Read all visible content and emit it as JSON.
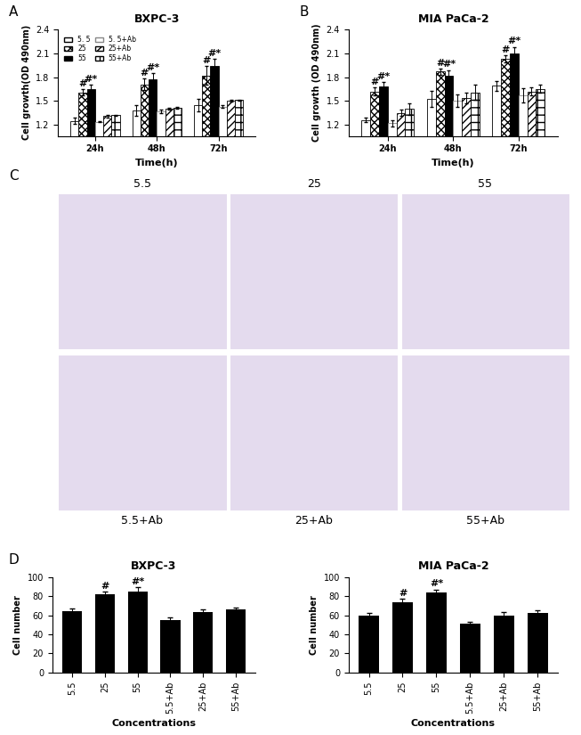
{
  "chart_data": [
    {
      "type": "bar",
      "panel": "A",
      "title": "BXPC-3",
      "x_label": "Time(h)",
      "y_label": "Cell growth(OD 490nm)",
      "categories": [
        "24h",
        "48h",
        "72h"
      ],
      "ylim": [
        1.06,
        2.4
      ],
      "yticks": [
        1.2,
        1.5,
        1.8,
        2.1,
        2.4
      ],
      "legend": "upper left",
      "series": [
        {
          "name": "5. 5",
          "color": "#ffffff",
          "values": [
            1.25,
            1.38,
            1.45
          ],
          "errors": [
            0.04,
            0.07,
            0.08
          ],
          "annotations": [
            null,
            null,
            null
          ]
        },
        {
          "name": "25",
          "color": "#ffffff",
          "values": [
            1.61,
            1.71,
            1.82
          ],
          "errors": [
            0.04,
            0.07,
            0.12
          ],
          "annotations": [
            "#",
            "#",
            "#"
          ]
        },
        {
          "name": "55",
          "color": "#000000",
          "values": [
            1.65,
            1.77,
            1.94
          ],
          "errors": [
            0.05,
            0.08,
            0.09
          ],
          "annotations": [
            "#*",
            "#*",
            "#*"
          ]
        },
        {
          "name": "5. 5+Ab",
          "color": "#ffffff",
          "values": [
            1.24,
            1.37,
            1.43
          ],
          "errors": [
            0.01,
            0.02,
            0.02
          ],
          "annotations": [
            null,
            null,
            null
          ]
        },
        {
          "name": "25+Ab",
          "color": "#ffffff",
          "values": [
            1.31,
            1.4,
            1.5
          ],
          "errors": [
            0.02,
            0.01,
            0.01
          ],
          "annotations": [
            null,
            null,
            null
          ]
        },
        {
          "name": "55+Ab",
          "color": "#ffffff",
          "values": [
            1.32,
            1.41,
            1.51
          ],
          "errors": [
            0.01,
            0.01,
            0.01
          ],
          "annotations": [
            null,
            null,
            null
          ]
        }
      ]
    },
    {
      "type": "bar",
      "panel": "B",
      "title": "MIA PaCa-2",
      "x_label": "Time(h)",
      "y_label": "Cell growth (OD 490nm)",
      "categories": [
        "24h",
        "48h",
        "72h"
      ],
      "ylim": [
        1.06,
        2.4
      ],
      "yticks": [
        1.2,
        1.5,
        1.8,
        2.1,
        2.4
      ],
      "series": [
        {
          "color": "#ffffff",
          "values": [
            1.26,
            1.53,
            1.69
          ],
          "errors": [
            0.03,
            0.1,
            0.06
          ],
          "annotations": [
            null,
            null,
            null
          ]
        },
        {
          "color": "#ffffff",
          "values": [
            1.62,
            1.87,
            2.03
          ],
          "errors": [
            0.05,
            0.04,
            0.04
          ],
          "annotations": [
            "#",
            "#",
            "#"
          ]
        },
        {
          "color": "#000000",
          "values": [
            1.68,
            1.82,
            2.1
          ],
          "errors": [
            0.06,
            0.07,
            0.08
          ],
          "annotations": [
            "#*",
            "#*",
            "#*"
          ]
        },
        {
          "color": "#ffffff",
          "values": [
            1.22,
            1.5,
            1.57
          ],
          "errors": [
            0.04,
            0.08,
            0.09
          ],
          "annotations": [
            null,
            null,
            null
          ]
        },
        {
          "color": "#ffffff",
          "values": [
            1.35,
            1.54,
            1.62
          ],
          "errors": [
            0.04,
            0.07,
            0.05
          ],
          "annotations": [
            null,
            null,
            null
          ]
        },
        {
          "color": "#ffffff",
          "values": [
            1.4,
            1.61,
            1.65
          ],
          "errors": [
            0.07,
            0.1,
            0.05
          ],
          "annotations": [
            null,
            null,
            null
          ]
        }
      ]
    },
    {
      "type": "bar",
      "panel": "D",
      "title": "BXPC-3",
      "x_label": "Concentrations",
      "y_label": "Cell number",
      "categories": [
        "5.5",
        "25",
        "55",
        "5.5+Ab",
        "25+Ab",
        "55+Ab"
      ],
      "color": "#000000",
      "values": [
        64,
        82,
        85,
        55,
        63,
        66
      ],
      "errors": [
        3,
        3,
        4,
        3,
        3,
        2
      ],
      "annotations": [
        null,
        "#",
        "#*",
        null,
        null,
        null
      ],
      "ylim": [
        0,
        100
      ],
      "yticks": [
        0,
        20,
        40,
        60,
        80,
        100
      ]
    },
    {
      "type": "bar",
      "title": "MIA PaCa-2",
      "x_label": "Concentrations",
      "y_label": "Cell number",
      "categories": [
        "5.5",
        "25",
        "55",
        "5.5+Ab",
        "25+Ab",
        "55+Ab"
      ],
      "color": "#000000",
      "values": [
        60,
        74,
        84,
        51,
        60,
        62
      ],
      "errors": [
        2,
        3,
        3,
        2,
        3,
        3
      ],
      "annotations": [
        null,
        "#",
        "#*",
        null,
        null,
        null
      ],
      "ylim": [
        0,
        100
      ],
      "yticks": [
        0,
        20,
        40,
        60,
        80,
        100
      ]
    }
  ],
  "images": {
    "panel": "C",
    "labels": [
      "5.5",
      "25",
      "55",
      "5.5+Ab",
      "25+Ab",
      "55+Ab"
    ]
  }
}
